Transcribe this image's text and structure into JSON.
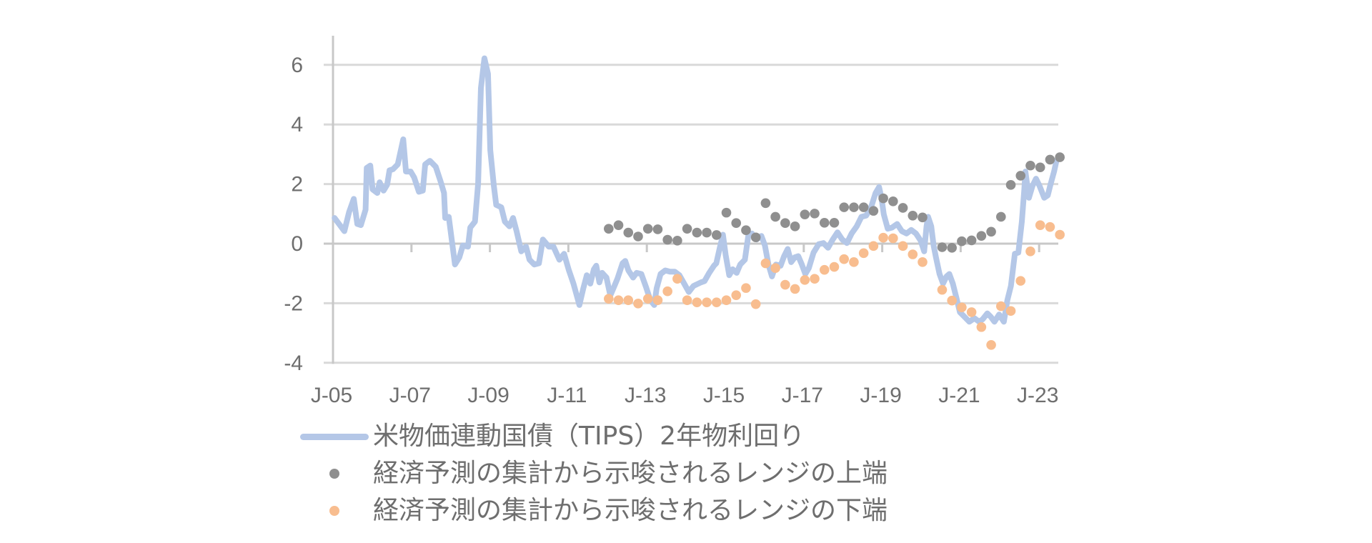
{
  "chart_data": {
    "type": "line",
    "title": "",
    "xlabel": "",
    "ylabel": "",
    "ylim": [
      -4,
      7
    ],
    "xlim": [
      2005.0,
      2023.5
    ],
    "yticks": [
      "6",
      "4",
      "2",
      "0",
      "-2",
      "-4"
    ],
    "ytick_values": [
      6,
      4,
      2,
      0,
      -2,
      -4
    ],
    "xticks": [
      "J-05",
      "J-07",
      "J-09",
      "J-11",
      "J-13",
      "J-15",
      "J-17",
      "J-19",
      "J-21",
      "J-23"
    ],
    "xtick_values": [
      2005,
      2007,
      2009,
      2011,
      2013,
      2015,
      2017,
      2019,
      2021,
      2023
    ],
    "grid": true,
    "legend_position": "bottom",
    "colors": {
      "tips_line": "#b4c7e7",
      "upper_dots": "#8f8f8f",
      "lower_dots": "#f8bd8f",
      "grid": "#d9d9d9",
      "axis": "#c8c8c8",
      "text": "#6e6e6e"
    },
    "series": [
      {
        "name": "米物価連動国債（TIPS）2年物利回り",
        "kind": "line",
        "x": [
          2005.04,
          2005.29,
          2005.41,
          2005.53,
          2005.62,
          2005.71,
          2005.83,
          2005.86,
          2005.95,
          2006.01,
          2006.13,
          2006.19,
          2006.29,
          2006.38,
          2006.44,
          2006.53,
          2006.65,
          2006.79,
          2006.86,
          2006.98,
          2007.07,
          2007.19,
          2007.29,
          2007.35,
          2007.47,
          2007.62,
          2007.74,
          2007.83,
          2007.86,
          2007.95,
          2008.11,
          2008.22,
          2008.31,
          2008.44,
          2008.5,
          2008.62,
          2008.7,
          2008.77,
          2008.86,
          2008.95,
          2009.01,
          2009.1,
          2009.16,
          2009.29,
          2009.38,
          2009.5,
          2009.59,
          2009.68,
          2009.8,
          2009.92,
          2010.01,
          2010.13,
          2010.25,
          2010.35,
          2010.5,
          2010.62,
          2010.77,
          2010.89,
          2011.01,
          2011.13,
          2011.28,
          2011.38,
          2011.47,
          2011.56,
          2011.65,
          2011.71,
          2011.79,
          2011.86,
          2011.97,
          2012.07,
          2012.16,
          2012.25,
          2012.38,
          2012.45,
          2012.53,
          2012.65,
          2012.74,
          2012.86,
          2012.98,
          2013.09,
          2013.19,
          2013.25,
          2013.35,
          2013.47,
          2013.59,
          2013.71,
          2013.83,
          2013.95,
          2014.07,
          2014.19,
          2014.38,
          2014.47,
          2014.59,
          2014.71,
          2014.77,
          2014.86,
          2014.94,
          2015.01,
          2015.1,
          2015.19,
          2015.29,
          2015.38,
          2015.5,
          2015.59,
          2015.68,
          2015.8,
          2015.92,
          2016.01,
          2016.1,
          2016.19,
          2016.29,
          2016.41,
          2016.5,
          2016.59,
          2016.68,
          2016.77,
          2016.86,
          2016.95,
          2017.04,
          2017.13,
          2017.25,
          2017.38,
          2017.5,
          2017.62,
          2017.74,
          2017.86,
          2017.98,
          2018.1,
          2018.22,
          2018.35,
          2018.47,
          2018.59,
          2018.71,
          2018.83,
          2018.92,
          2018.98,
          2019.04,
          2019.14,
          2019.25,
          2019.38,
          2019.5,
          2019.62,
          2019.74,
          2019.86,
          2019.98,
          2020.07,
          2020.13,
          2020.17,
          2020.25,
          2020.31,
          2020.37,
          2020.46,
          2020.55,
          2020.64,
          2020.71,
          2020.8,
          2020.89,
          2020.98,
          2021.1,
          2021.22,
          2021.35,
          2021.47,
          2021.56,
          2021.68,
          2021.77,
          2021.86,
          2021.98,
          2022.1,
          2022.19,
          2022.28,
          2022.38,
          2022.47,
          2022.56,
          2022.62,
          2022.65,
          2022.74,
          2022.83,
          2022.92,
          2023.01,
          2023.13,
          2023.22,
          2023.28,
          2023.38,
          2023.44
        ],
        "values": [
          0.86,
          0.42,
          1.06,
          1.5,
          0.66,
          0.62,
          1.14,
          2.54,
          2.62,
          1.82,
          1.7,
          2.06,
          1.78,
          1.98,
          2.46,
          2.5,
          2.66,
          3.5,
          2.42,
          2.42,
          2.22,
          1.74,
          1.78,
          2.66,
          2.78,
          2.58,
          2.1,
          1.7,
          0.86,
          0.9,
          -0.7,
          -0.46,
          -0.06,
          -0.1,
          0.54,
          0.74,
          2.02,
          5.22,
          6.22,
          5.7,
          3.14,
          1.94,
          1.3,
          1.22,
          0.74,
          0.58,
          0.86,
          0.42,
          -0.26,
          -0.1,
          -0.54,
          -0.7,
          -0.66,
          0.14,
          -0.1,
          -0.1,
          -0.54,
          -0.34,
          -0.88,
          -1.34,
          -2.06,
          -1.5,
          -1.06,
          -1.34,
          -0.86,
          -0.74,
          -1.3,
          -0.98,
          -1.14,
          -1.74,
          -1.46,
          -1.18,
          -0.66,
          -0.58,
          -0.9,
          -1.14,
          -0.98,
          -1.02,
          -1.46,
          -1.9,
          -2.06,
          -1.5,
          -1.02,
          -0.9,
          -0.94,
          -0.94,
          -1.06,
          -1.34,
          -1.62,
          -1.42,
          -1.3,
          -1.26,
          -0.98,
          -0.74,
          -0.66,
          -0.14,
          0.3,
          -0.38,
          -1.06,
          -0.86,
          -0.98,
          -0.7,
          -0.54,
          0.3,
          0.34,
          0.14,
          0.26,
          -0.06,
          -0.7,
          -1.1,
          -0.7,
          -0.74,
          -0.42,
          -0.18,
          -0.62,
          -0.46,
          -0.42,
          -0.7,
          -1.02,
          -0.82,
          -0.3,
          -0.02,
          0.02,
          -0.14,
          0.14,
          0.38,
          0.14,
          0.02,
          0.34,
          0.58,
          0.9,
          0.94,
          1.2,
          1.7,
          1.9,
          1.54,
          0.98,
          0.5,
          0.54,
          0.66,
          0.42,
          0.34,
          0.46,
          0.34,
          0.1,
          -0.26,
          0.58,
          0.9,
          0.58,
          -0.06,
          -0.46,
          -1.02,
          -1.34,
          -1.1,
          -1.02,
          -1.34,
          -1.82,
          -2.3,
          -2.46,
          -2.62,
          -2.5,
          -2.62,
          -2.54,
          -2.34,
          -2.46,
          -2.62,
          -2.38,
          -2.62,
          -1.9,
          -1.42,
          -0.34,
          -0.3,
          0.74,
          1.78,
          2.42,
          1.54,
          1.94,
          2.18,
          1.94,
          1.54,
          1.62,
          1.94,
          2.42,
          2.78
        ]
      },
      {
        "name": "経済予測の集計から示唆されるレンジの上端",
        "kind": "scatter",
        "x_start": 2012.0,
        "x_step": 0.25,
        "values": [
          0.5,
          0.62,
          0.37,
          0.24,
          0.5,
          0.48,
          0.13,
          0.1,
          0.5,
          0.37,
          0.37,
          0.29,
          1.04,
          0.69,
          0.45,
          0.21,
          1.36,
          0.9,
          0.69,
          0.58,
          0.98,
          1.01,
          0.7,
          0.7,
          1.22,
          1.22,
          1.22,
          1.1,
          1.52,
          1.42,
          1.2,
          0.94,
          0.88,
          null,
          -0.12,
          -0.14,
          0.08,
          0.11,
          0.26,
          0.4,
          0.9,
          1.97,
          2.28,
          2.62,
          2.56,
          2.82,
          2.9
        ]
      },
      {
        "name": "経済予測の集計から示唆されるレンジの下端",
        "kind": "scatter",
        "x_start": 2012.0,
        "x_step": 0.25,
        "values": [
          -1.85,
          -1.9,
          -1.9,
          -2.01,
          -1.85,
          -1.9,
          -1.6,
          -1.18,
          -1.9,
          -1.97,
          -1.97,
          -1.97,
          -1.9,
          -1.73,
          -1.49,
          -2.03,
          -0.66,
          -0.82,
          -1.38,
          -1.52,
          -1.22,
          -1.18,
          -0.88,
          -0.78,
          -0.52,
          -0.62,
          -0.32,
          -0.08,
          0.2,
          0.18,
          -0.08,
          -0.36,
          -0.62,
          null,
          -1.55,
          -1.91,
          -2.14,
          -2.3,
          -2.8,
          -3.4,
          -2.1,
          -2.26,
          -1.25,
          -0.26,
          0.62,
          0.56,
          0.3
        ]
      }
    ]
  },
  "legend": {
    "items": [
      {
        "label": "米物価連動国債（TIPS）2年物利回り",
        "marker": "line",
        "icon": "line-swatch"
      },
      {
        "label": "経済予測の集計から示唆されるレンジの上端",
        "marker": "dot",
        "icon": "dot-swatch"
      },
      {
        "label": "経済予測の集計から示唆されるレンジの下端",
        "marker": "dot",
        "icon": "dot-swatch"
      }
    ]
  }
}
